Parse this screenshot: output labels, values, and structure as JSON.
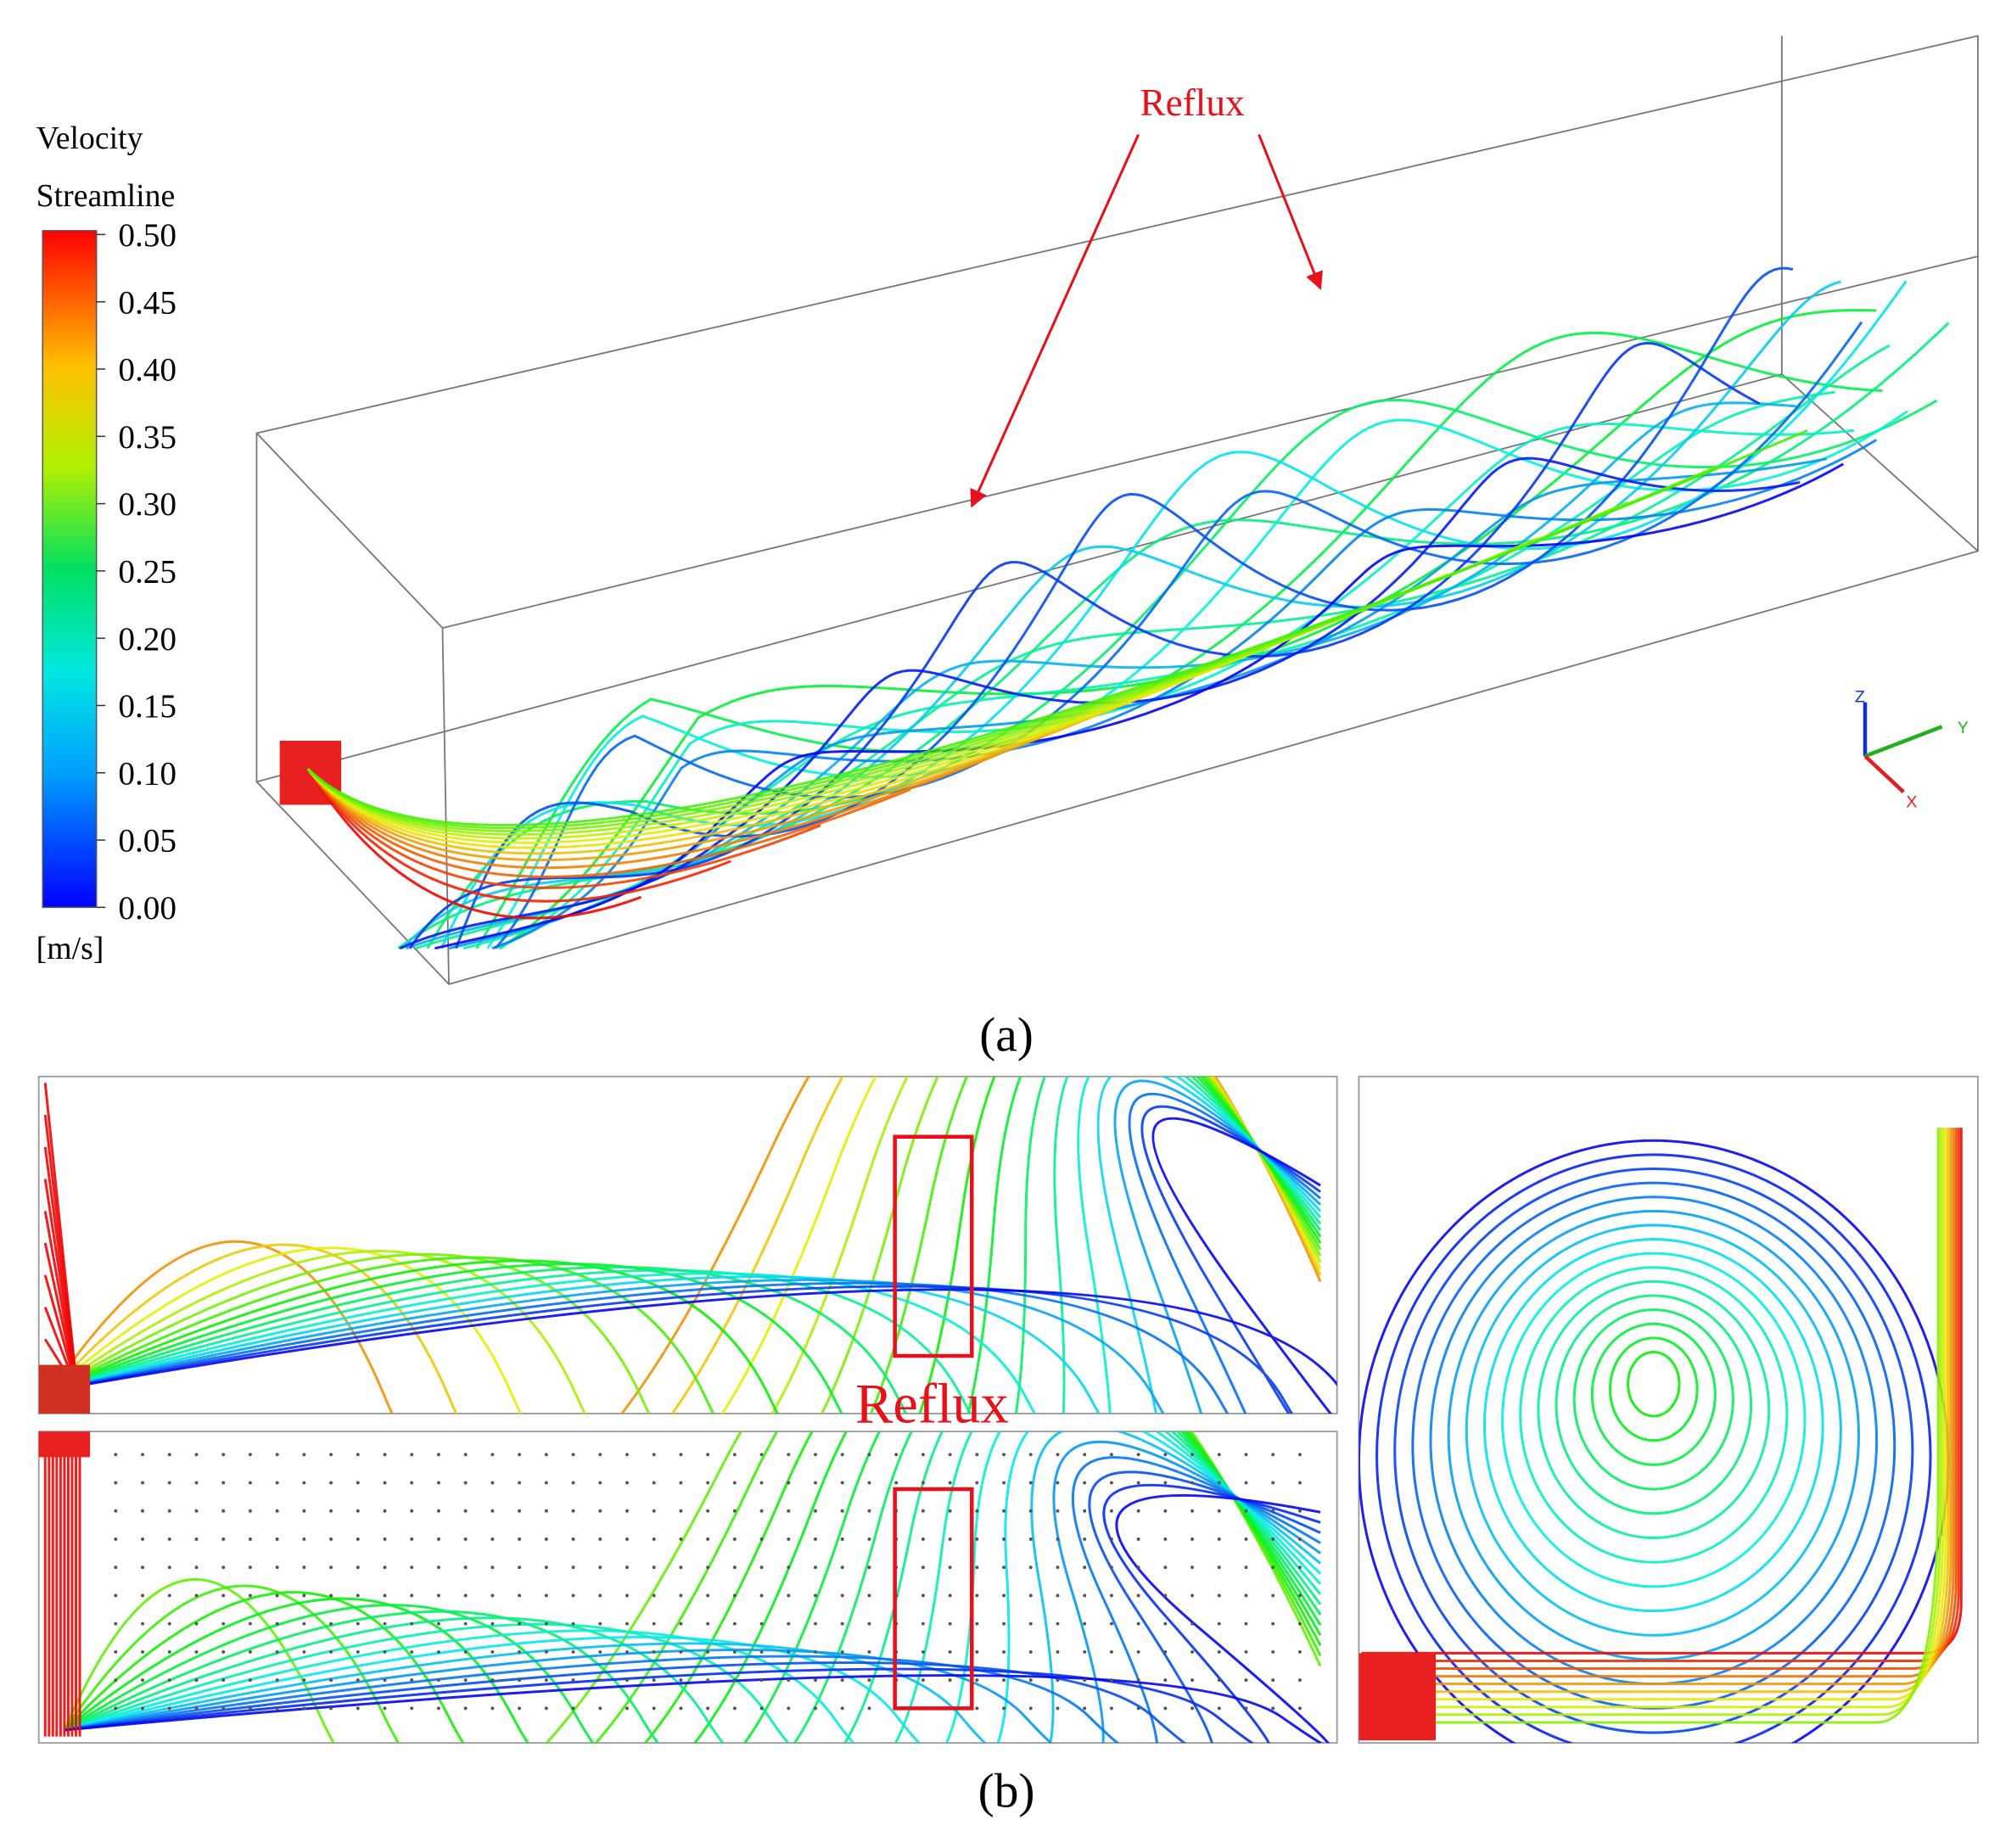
{
  "legend": {
    "title_lines": [
      "Velocity",
      "Streamline"
    ],
    "unit": "[m/s]",
    "ylim": [
      0,
      0.5
    ],
    "ticks": [
      {
        "value": 0.5,
        "label": "0.50"
      },
      {
        "value": 0.45,
        "label": "0.45"
      },
      {
        "value": 0.4,
        "label": "0.40"
      },
      {
        "value": 0.35,
        "label": "0.35"
      },
      {
        "value": 0.3,
        "label": "0.30"
      },
      {
        "value": 0.25,
        "label": "0.25"
      },
      {
        "value": 0.2,
        "label": "0.20"
      },
      {
        "value": 0.15,
        "label": "0.15"
      },
      {
        "value": 0.1,
        "label": "0.10"
      },
      {
        "value": 0.05,
        "label": "0.05"
      },
      {
        "value": 0,
        "label": "0.00"
      }
    ]
  },
  "annotations": {
    "reflux_a": "Reflux",
    "reflux_b": "Reflux"
  },
  "axes": {
    "z": "Z",
    "y": "Y",
    "x": "X"
  },
  "panels": {
    "a": "(a)",
    "b": "(b)"
  }
}
